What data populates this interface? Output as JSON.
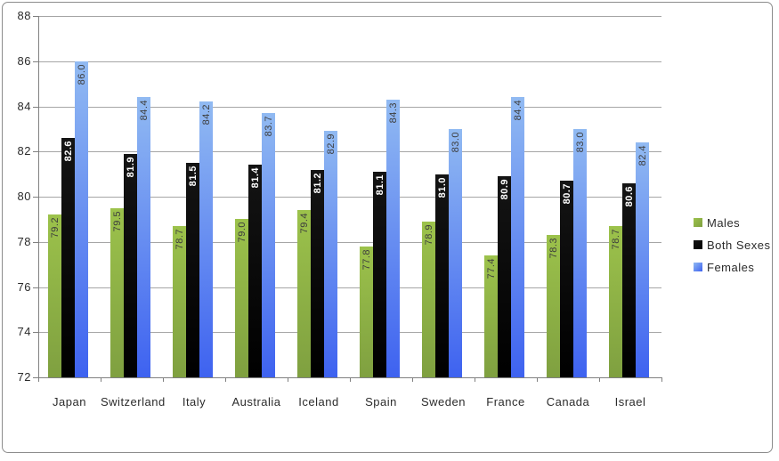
{
  "chart_data": {
    "type": "bar",
    "title": "",
    "xlabel": "",
    "ylabel": "",
    "categories": [
      "Japan",
      "Switzerland",
      "Italy",
      "Australia",
      "Iceland",
      "Spain",
      "Sweden",
      "France",
      "Canada",
      "Israel"
    ],
    "series": [
      {
        "name": "Males",
        "values": [
          79.2,
          79.5,
          78.7,
          79.0,
          79.4,
          77.8,
          78.9,
          77.4,
          78.3,
          78.7
        ],
        "color_top": "#9cc24b",
        "color_bottom": "#7fa040",
        "label_color": "#3d3d3d",
        "label_bold": false
      },
      {
        "name": "Both Sexes",
        "values": [
          82.6,
          81.9,
          81.5,
          81.4,
          81.2,
          81.1,
          81.0,
          80.9,
          80.7,
          80.6
        ],
        "color_top": "#141414",
        "color_bottom": "#000000",
        "label_color": "#ffffff",
        "label_bold": true
      },
      {
        "name": "Females",
        "values": [
          86.0,
          84.4,
          84.2,
          83.7,
          82.9,
          84.3,
          83.0,
          84.4,
          83.0,
          82.4
        ],
        "color_top": "#91baf2",
        "color_bottom": "#3e62f0",
        "label_color": "#3d3d3d",
        "label_bold": false
      }
    ],
    "ylim": [
      72,
      88
    ],
    "ytick_step": 2,
    "ytick_labels": [
      "88",
      "86",
      "84",
      "82",
      "80",
      "78",
      "76",
      "74",
      "72"
    ],
    "value_decimals": 1,
    "grid": true,
    "legend_position": "right",
    "legend_items": [
      "Males",
      "Both Sexes",
      "Females"
    ],
    "colors": {
      "gridline": "#a6a6a6",
      "axis": "#808080",
      "frame_border": "#8c8c8c",
      "tick_text": "#2b2b2b",
      "background": "#ffffff"
    }
  }
}
